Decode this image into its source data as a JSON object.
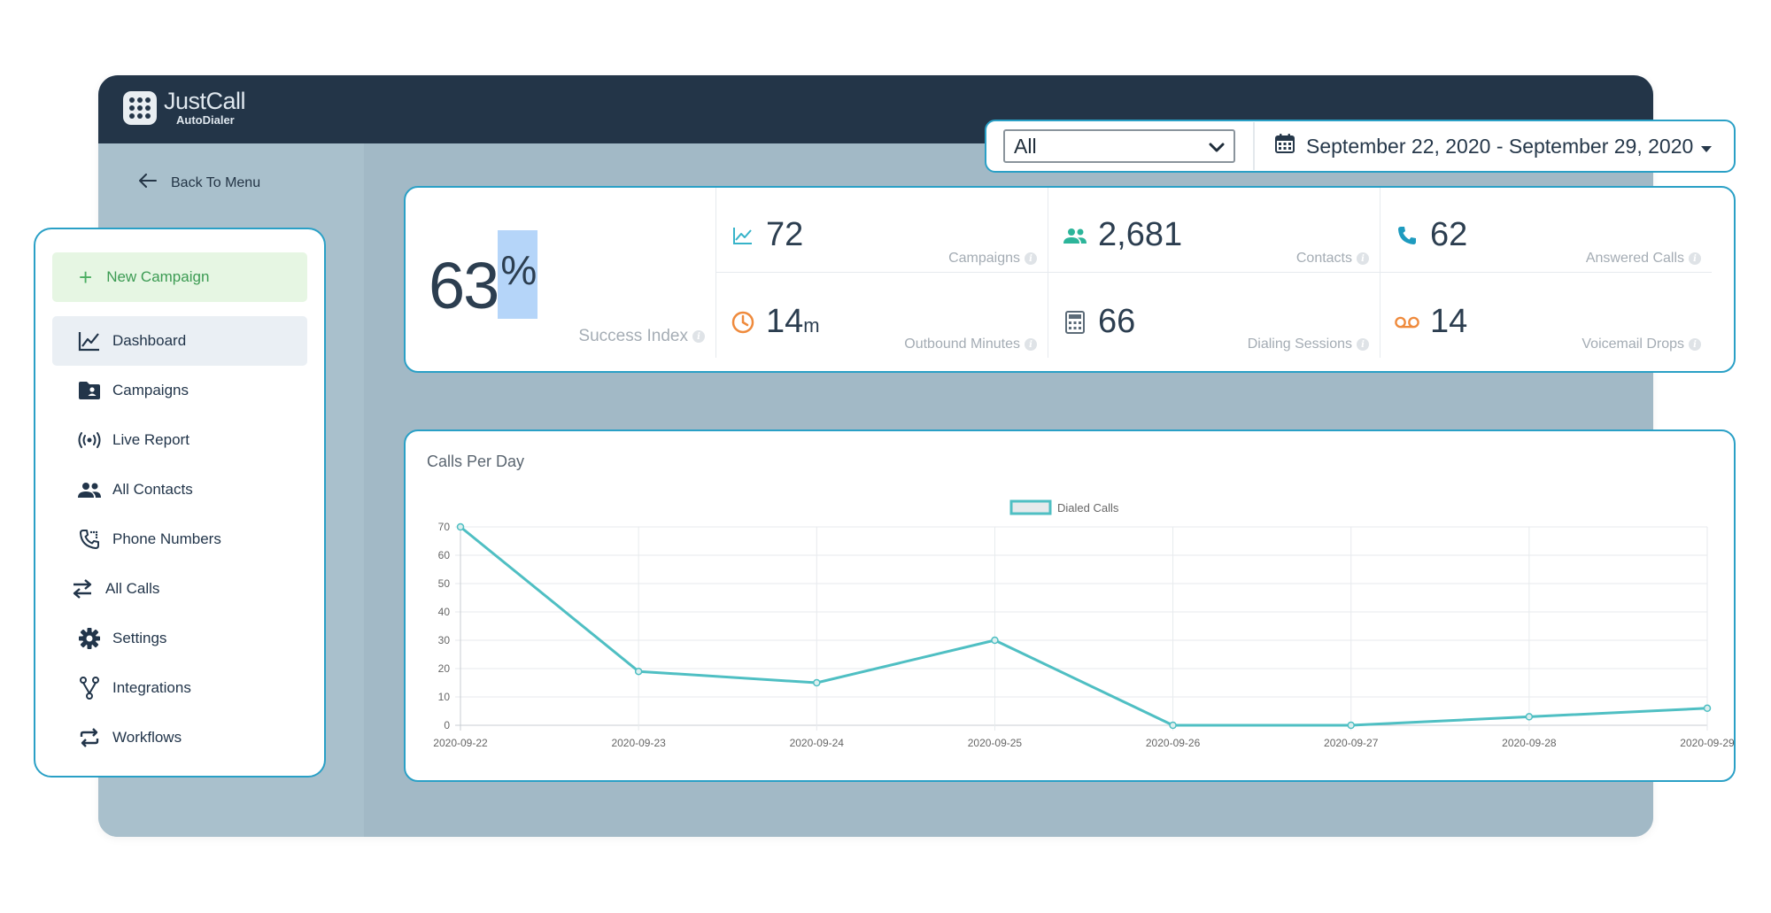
{
  "app": {
    "logo_name": "JustCall",
    "logo_sub": "AutoDialer"
  },
  "nav_back": {
    "label": "Back To Menu",
    "icon": "arrow-left-icon"
  },
  "sidebar": {
    "new_campaign": {
      "label": "New Campaign",
      "icon": "plus-icon",
      "color": "#3c9b53"
    },
    "items": [
      {
        "label": "Dashboard",
        "icon": "line-chart-icon",
        "active": true
      },
      {
        "label": "Campaigns",
        "icon": "folder-user-icon"
      },
      {
        "label": "Live Report",
        "icon": "broadcast-icon"
      },
      {
        "label": "All Contacts",
        "icon": "users-icon"
      },
      {
        "label": "Phone Numbers",
        "icon": "phone-icon"
      },
      {
        "label": "All Calls",
        "icon": "transfer-arrows-icon"
      },
      {
        "label": "Settings",
        "icon": "gear-icon"
      },
      {
        "label": "Integrations",
        "icon": "fork-icon"
      },
      {
        "label": "Workflows",
        "icon": "repeat-icon"
      }
    ]
  },
  "filters": {
    "select_value": "All",
    "date_range": "September 22, 2020 - September 29, 2020"
  },
  "stats": {
    "success_index": {
      "value": "63",
      "unit": "%",
      "label": "Success Index"
    },
    "cells": [
      {
        "value": "72",
        "unit": "",
        "label": "Campaigns",
        "icon": "line-chart-icon",
        "color": "#36b3c9"
      },
      {
        "value": "2,681",
        "unit": "",
        "label": "Contacts",
        "icon": "users-icon",
        "color": "#2cb59a"
      },
      {
        "value": "62",
        "unit": "",
        "label": "Answered Calls",
        "icon": "phone-icon",
        "color": "#1e9bbf"
      },
      {
        "value": "14",
        "unit": "m",
        "label": "Outbound Minutes",
        "icon": "clock-icon",
        "color": "#ef8a3c"
      },
      {
        "value": "66",
        "unit": "",
        "label": "Dialing Sessions",
        "icon": "calculator-icon",
        "color": "#5c6b78"
      },
      {
        "value": "14",
        "unit": "",
        "label": "Voicemail Drops",
        "icon": "voicemail-icon",
        "color": "#ef8a3c"
      }
    ]
  },
  "chart_title": "Calls Per Day",
  "chart_data": {
    "type": "line",
    "title": "Calls Per Day",
    "xlabel": "",
    "ylabel": "",
    "x": [
      "2020-09-22",
      "2020-09-23",
      "2020-09-24",
      "2020-09-25",
      "2020-09-26",
      "2020-09-27",
      "2020-09-28",
      "2020-09-29"
    ],
    "series": [
      {
        "name": "Dialed Calls",
        "values": [
          70,
          19,
          15,
          30,
          0,
          0,
          3,
          6
        ],
        "color": "#4fbfc3"
      }
    ],
    "ylim": [
      0,
      70
    ],
    "yticks": [
      0,
      10,
      20,
      30,
      40,
      50,
      60,
      70
    ],
    "grid": true,
    "legend": "top-center"
  }
}
